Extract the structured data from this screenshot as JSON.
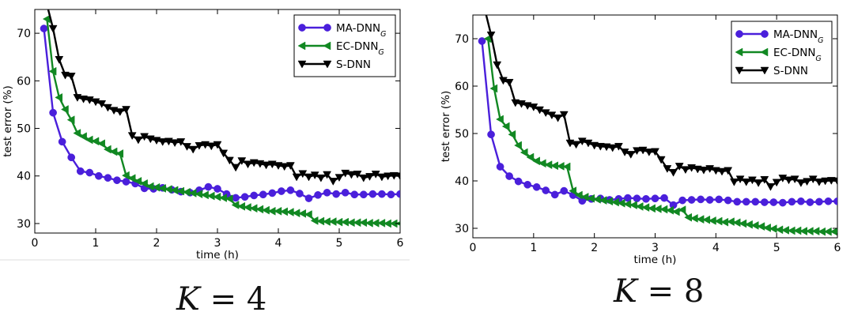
{
  "chart_data": [
    {
      "type": "line",
      "xlabel": "time (h)",
      "ylabel": "test error (%)",
      "xlim": [
        0,
        6
      ],
      "ylim": [
        28,
        75
      ],
      "xticks": [
        0,
        1,
        2,
        3,
        4,
        5,
        6
      ],
      "yticks": [
        30,
        40,
        50,
        60,
        70
      ],
      "legend_position": "top-right",
      "caption_var": "K",
      "caption_rest": " = 4",
      "series": [
        {
          "name": "MA-DNN",
          "name_sub": "G",
          "color": "#4a1fdb",
          "marker": "circle",
          "x": [
            0.15,
            0.3,
            0.45,
            0.6,
            0.75,
            0.9,
            1.05,
            1.2,
            1.35,
            1.5,
            1.65,
            1.8,
            1.95,
            2.1,
            2.25,
            2.4,
            2.55,
            2.7,
            2.85,
            3.0,
            3.15,
            3.3,
            3.45,
            3.6,
            3.75,
            3.9,
            4.05,
            4.2,
            4.35,
            4.5,
            4.65,
            4.8,
            4.95,
            5.1,
            5.25,
            5.4,
            5.55,
            5.7,
            5.85,
            6.0
          ],
          "y": [
            71.0,
            53.3,
            47.2,
            43.9,
            41.0,
            40.7,
            40.0,
            39.6,
            39.1,
            38.8,
            38.4,
            37.4,
            37.3,
            37.5,
            37.1,
            36.7,
            36.5,
            37.0,
            37.7,
            37.3,
            36.2,
            35.4,
            35.6,
            35.9,
            36.1,
            36.4,
            36.8,
            37.0,
            36.3,
            35.3,
            36.0,
            36.5,
            36.2,
            36.5,
            36.1,
            36.1,
            36.2,
            36.2,
            36.1,
            36.2
          ]
        },
        {
          "name": "EC-DNN",
          "name_sub": "G",
          "color": "#118822",
          "marker": "triangle-left",
          "x": [
            0.2,
            0.3,
            0.4,
            0.5,
            0.6,
            0.7,
            0.8,
            0.9,
            1.0,
            1.1,
            1.2,
            1.3,
            1.4,
            1.5,
            1.6,
            1.7,
            1.8,
            1.9,
            2.0,
            2.1,
            2.2,
            2.3,
            2.4,
            2.5,
            2.6,
            2.7,
            2.8,
            2.9,
            3.0,
            3.1,
            3.2,
            3.3,
            3.4,
            3.5,
            3.6,
            3.7,
            3.8,
            3.9,
            4.0,
            4.1,
            4.2,
            4.3,
            4.4,
            4.5,
            4.6,
            4.7,
            4.8,
            4.9,
            5.0,
            5.1,
            5.2,
            5.3,
            5.4,
            5.5,
            5.6,
            5.7,
            5.8,
            5.9,
            6.0
          ],
          "y": [
            73.0,
            62.0,
            56.5,
            54.0,
            51.8,
            49.0,
            48.3,
            47.6,
            47.3,
            46.8,
            45.6,
            45.1,
            44.7,
            40.1,
            39.5,
            38.9,
            38.4,
            37.8,
            37.6,
            37.4,
            37.2,
            37.0,
            36.8,
            36.6,
            36.4,
            36.2,
            36.0,
            35.8,
            35.6,
            35.4,
            35.2,
            33.9,
            33.6,
            33.4,
            33.2,
            33.0,
            32.8,
            32.6,
            32.6,
            32.5,
            32.4,
            32.2,
            32.1,
            31.9,
            30.6,
            30.5,
            30.4,
            30.4,
            30.3,
            30.3,
            30.2,
            30.2,
            30.2,
            30.1,
            30.1,
            30.1,
            30.0,
            30.0,
            30.0
          ]
        },
        {
          "name": "S-DNN",
          "name_sub": "",
          "color": "#000000",
          "marker": "triangle-down",
          "x": [
            0.2,
            0.3,
            0.4,
            0.5,
            0.6,
            0.7,
            0.8,
            0.9,
            1.0,
            1.1,
            1.2,
            1.3,
            1.4,
            1.5,
            1.6,
            1.7,
            1.8,
            1.9,
            2.0,
            2.1,
            2.2,
            2.3,
            2.4,
            2.5,
            2.6,
            2.7,
            2.8,
            2.9,
            3.0,
            3.1,
            3.2,
            3.3,
            3.4,
            3.5,
            3.6,
            3.7,
            3.8,
            3.9,
            4.0,
            4.1,
            4.2,
            4.3,
            4.4,
            4.5,
            4.6,
            4.7,
            4.8,
            4.9,
            5.0,
            5.1,
            5.2,
            5.3,
            5.4,
            5.5,
            5.6,
            5.7,
            5.8,
            5.9,
            6.0
          ],
          "y": [
            76.0,
            71.0,
            64.5,
            61.2,
            61.0,
            56.5,
            56.2,
            56.0,
            55.6,
            55.2,
            54.4,
            53.8,
            53.5,
            54.0,
            48.5,
            47.6,
            48.3,
            47.8,
            47.5,
            47.2,
            47.3,
            47.0,
            47.2,
            46.2,
            45.6,
            46.4,
            46.6,
            46.3,
            46.6,
            44.8,
            43.3,
            41.8,
            43.2,
            42.5,
            42.8,
            42.6,
            42.3,
            42.5,
            42.2,
            42.0,
            42.2,
            39.8,
            40.5,
            39.8,
            40.2,
            39.6,
            40.3,
            38.9,
            39.7,
            40.6,
            40.3,
            40.4,
            39.6,
            39.9,
            40.4,
            39.8,
            40.0,
            40.1,
            40.0
          ]
        }
      ]
    },
    {
      "type": "line",
      "xlabel": "time (h)",
      "ylabel": "test error (%)",
      "xlim": [
        0,
        6
      ],
      "ylim": [
        28,
        75
      ],
      "xticks": [
        0,
        1,
        2,
        3,
        4,
        5,
        6
      ],
      "yticks": [
        30,
        40,
        50,
        60,
        70
      ],
      "legend_position": "top-right",
      "caption_var": "K",
      "caption_rest": " = 8",
      "series": [
        {
          "name": "MA-DNN",
          "name_sub": "G",
          "color": "#4a1fdb",
          "marker": "circle",
          "x": [
            0.15,
            0.3,
            0.45,
            0.6,
            0.75,
            0.9,
            1.05,
            1.2,
            1.35,
            1.5,
            1.65,
            1.8,
            1.95,
            2.1,
            2.25,
            2.4,
            2.55,
            2.7,
            2.85,
            3.0,
            3.15,
            3.3,
            3.45,
            3.6,
            3.75,
            3.9,
            4.05,
            4.2,
            4.35,
            4.5,
            4.65,
            4.8,
            4.95,
            5.1,
            5.25,
            5.4,
            5.55,
            5.7,
            5.85,
            6.0
          ],
          "y": [
            69.5,
            49.8,
            43.0,
            41.0,
            39.9,
            39.2,
            38.7,
            38.0,
            37.1,
            37.9,
            37.0,
            35.8,
            36.2,
            36.3,
            36.0,
            36.2,
            36.4,
            36.3,
            36.2,
            36.3,
            36.4,
            34.9,
            35.9,
            36.0,
            36.1,
            36.0,
            36.1,
            35.9,
            35.6,
            35.6,
            35.6,
            35.5,
            35.5,
            35.4,
            35.6,
            35.7,
            35.5,
            35.6,
            35.7,
            35.7
          ]
        },
        {
          "name": "EC-DNN",
          "name_sub": "G",
          "color": "#118822",
          "marker": "triangle-left",
          "x": [
            0.25,
            0.35,
            0.45,
            0.55,
            0.65,
            0.75,
            0.85,
            0.95,
            1.05,
            1.15,
            1.25,
            1.35,
            1.45,
            1.55,
            1.65,
            1.75,
            1.85,
            1.95,
            2.05,
            2.15,
            2.25,
            2.35,
            2.45,
            2.55,
            2.65,
            2.75,
            2.85,
            2.95,
            3.05,
            3.15,
            3.25,
            3.35,
            3.45,
            3.55,
            3.65,
            3.75,
            3.85,
            3.95,
            4.05,
            4.15,
            4.25,
            4.35,
            4.45,
            4.55,
            4.65,
            4.75,
            4.85,
            4.95,
            5.05,
            5.15,
            5.25,
            5.35,
            5.45,
            5.55,
            5.65,
            5.75,
            5.85,
            5.95
          ],
          "y": [
            70.0,
            59.5,
            53.0,
            51.5,
            49.8,
            47.5,
            46.0,
            45.0,
            44.2,
            43.7,
            43.4,
            43.2,
            43.1,
            43.0,
            37.9,
            37.0,
            36.6,
            36.3,
            36.1,
            35.9,
            35.7,
            35.5,
            35.3,
            35.1,
            34.9,
            34.6,
            34.4,
            34.2,
            34.1,
            34.0,
            33.8,
            33.5,
            33.9,
            32.3,
            32.1,
            31.9,
            31.8,
            31.6,
            31.5,
            31.3,
            31.4,
            31.2,
            31.0,
            30.8,
            30.6,
            30.4,
            30.1,
            29.9,
            29.7,
            29.6,
            29.5,
            29.5,
            29.4,
            29.4,
            29.4,
            29.3,
            29.3,
            29.3
          ]
        },
        {
          "name": "S-DNN",
          "name_sub": "",
          "color": "#000000",
          "marker": "triangle-down",
          "x": [
            0.2,
            0.3,
            0.4,
            0.5,
            0.6,
            0.7,
            0.8,
            0.9,
            1.0,
            1.1,
            1.2,
            1.3,
            1.4,
            1.5,
            1.6,
            1.7,
            1.8,
            1.9,
            2.0,
            2.1,
            2.2,
            2.3,
            2.4,
            2.5,
            2.6,
            2.7,
            2.8,
            2.9,
            3.0,
            3.1,
            3.2,
            3.3,
            3.4,
            3.5,
            3.6,
            3.7,
            3.8,
            3.9,
            4.0,
            4.1,
            4.2,
            4.3,
            4.4,
            4.5,
            4.6,
            4.7,
            4.8,
            4.9,
            5.0,
            5.1,
            5.2,
            5.3,
            5.4,
            5.5,
            5.6,
            5.7,
            5.8,
            5.9,
            6.0
          ],
          "y": [
            76.0,
            70.8,
            64.5,
            61.2,
            60.8,
            56.5,
            56.3,
            55.9,
            55.6,
            55.0,
            54.4,
            53.9,
            53.3,
            54.0,
            48.0,
            47.7,
            48.4,
            48.0,
            47.5,
            47.3,
            47.2,
            47.0,
            47.3,
            46.1,
            45.6,
            46.4,
            46.5,
            46.1,
            46.2,
            44.5,
            42.6,
            41.8,
            43.1,
            42.4,
            42.8,
            42.5,
            42.3,
            42.6,
            42.2,
            42.0,
            42.2,
            39.8,
            40.4,
            39.8,
            40.2,
            39.6,
            40.3,
            38.8,
            39.7,
            40.6,
            40.2,
            40.4,
            39.6,
            39.9,
            40.4,
            39.8,
            40.0,
            40.1,
            40.0
          ]
        }
      ]
    }
  ]
}
